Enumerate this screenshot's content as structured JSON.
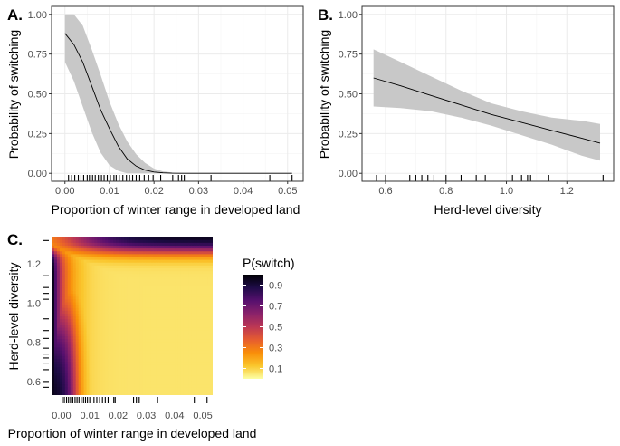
{
  "colors": {
    "ribbon": "#c8c8c8",
    "line": "#000000",
    "panel_border": "#333333",
    "grid_major": "#ebebeb",
    "grid_minor": "#f4f4f4",
    "palette": [
      "#fcffa4",
      "#fac62d",
      "#f98e09",
      "#e65d2f",
      "#bc3754",
      "#8a226a",
      "#57106e",
      "#1f0c48",
      "#000004"
    ]
  },
  "chart_data": [
    {
      "type": "line",
      "panel_label": "A.",
      "xlabel": "Proportion of winter range in developed land",
      "ylabel": "Probability of switching",
      "xlim": [
        -0.003,
        0.0535
      ],
      "ylim": [
        -0.05,
        1.05
      ],
      "x_ticks": [
        "0.00",
        "0.01",
        "0.02",
        "0.03",
        "0.04",
        "0.05"
      ],
      "x_tick_values": [
        0,
        0.01,
        0.02,
        0.03,
        0.04,
        0.05
      ],
      "y_ticks": [
        "0.00",
        "0.25",
        "0.50",
        "0.75",
        "1.00"
      ],
      "y_tick_values": [
        0,
        0.25,
        0.5,
        0.75,
        1.0
      ],
      "grid": true,
      "x": [
        0.0,
        0.002,
        0.004,
        0.006,
        0.008,
        0.01,
        0.012,
        0.014,
        0.016,
        0.018,
        0.02,
        0.022,
        0.024,
        0.026,
        0.03,
        0.035,
        0.04,
        0.045,
        0.051
      ],
      "y": [
        0.88,
        0.81,
        0.7,
        0.55,
        0.4,
        0.28,
        0.17,
        0.09,
        0.045,
        0.02,
        0.008,
        0.003,
        0.001,
        0.0,
        0.0,
        0.0,
        0.0,
        0.0,
        0.0
      ],
      "y_lower": [
        0.7,
        0.58,
        0.42,
        0.26,
        0.13,
        0.05,
        0.015,
        0.0,
        0.0,
        0.0,
        0.0,
        0.0,
        0.0,
        0.0,
        0.0,
        0.0,
        0.0,
        0.0,
        0.0
      ],
      "y_upper": [
        1.0,
        1.0,
        0.93,
        0.78,
        0.62,
        0.45,
        0.31,
        0.2,
        0.12,
        0.065,
        0.03,
        0.012,
        0.005,
        0.002,
        0.0,
        0.0,
        0.0,
        0.0,
        0.0
      ],
      "rug_x": [
        0.0008,
        0.0015,
        0.0022,
        0.003,
        0.0036,
        0.0042,
        0.005,
        0.0055,
        0.0062,
        0.0068,
        0.0075,
        0.0082,
        0.0088,
        0.0095,
        0.0102,
        0.011,
        0.0115,
        0.0122,
        0.013,
        0.0138,
        0.0145,
        0.0152,
        0.016,
        0.0168,
        0.0178,
        0.0188,
        0.0198,
        0.0215,
        0.0242,
        0.0255,
        0.0262,
        0.0268,
        0.0328,
        0.046,
        0.051
      ]
    },
    {
      "type": "line",
      "panel_label": "B.",
      "xlabel": "Herd-level diversity",
      "ylabel": "Probability of switching",
      "xlim": [
        0.522,
        1.355
      ],
      "ylim": [
        -0.05,
        1.05
      ],
      "x_ticks": [
        "0.6",
        "0.8",
        "1.0",
        "1.2"
      ],
      "x_tick_values": [
        0.6,
        0.8,
        1.0,
        1.2
      ],
      "y_ticks": [
        "0.00",
        "0.25",
        "0.50",
        "0.75",
        "1.00"
      ],
      "y_tick_values": [
        0,
        0.25,
        0.5,
        0.75,
        1.0
      ],
      "grid": true,
      "x": [
        0.56,
        0.65,
        0.75,
        0.85,
        0.95,
        1.05,
        1.15,
        1.25,
        1.31
      ],
      "y": [
        0.6,
        0.55,
        0.49,
        0.43,
        0.37,
        0.32,
        0.27,
        0.22,
        0.19
      ],
      "y_lower": [
        0.42,
        0.41,
        0.39,
        0.35,
        0.3,
        0.24,
        0.18,
        0.11,
        0.08
      ],
      "y_upper": [
        0.78,
        0.7,
        0.61,
        0.52,
        0.44,
        0.39,
        0.35,
        0.33,
        0.31
      ],
      "rug_x": [
        0.57,
        0.6,
        0.68,
        0.7,
        0.72,
        0.74,
        0.76,
        0.8,
        0.85,
        0.9,
        0.93,
        1.02,
        1.05,
        1.07,
        1.08,
        1.14,
        1.32
      ]
    },
    {
      "type": "heatmap",
      "panel_label": "C.",
      "xlabel": "Proportion of winter range in developed land",
      "ylabel": "Herd-level diversity",
      "legend_title": "P(switch)",
      "legend_position": "right",
      "xlim": [
        -0.0035,
        0.0535
      ],
      "ylim": [
        0.53,
        1.34
      ],
      "x_ticks": [
        "0.00",
        "0.01",
        "0.02",
        "0.03",
        "0.04",
        "0.05"
      ],
      "x_tick_values": [
        0,
        0.01,
        0.02,
        0.03,
        0.04,
        0.05
      ],
      "y_ticks": [
        "0.6",
        "0.8",
        "1.0",
        "1.2"
      ],
      "y_tick_values": [
        0.6,
        0.8,
        1.0,
        1.2
      ],
      "legend_ticks": [
        "0.9",
        "0.7",
        "0.5",
        "0.3",
        "0.1"
      ],
      "legend_tick_values": [
        0.9,
        0.7,
        0.5,
        0.3,
        0.1
      ],
      "legend_range": [
        0.0,
        1.0
      ],
      "z_description": "Highest near x=0 at low diversity and near x=0.05 at high diversity; low over the central region",
      "rug_x": [
        0.0003,
        0.001,
        0.0018,
        0.0025,
        0.0032,
        0.004,
        0.0048,
        0.0055,
        0.0062,
        0.007,
        0.0078,
        0.0085,
        0.0092,
        0.01,
        0.0115,
        0.0125,
        0.0135,
        0.0145,
        0.0155,
        0.0165,
        0.0185,
        0.019,
        0.0255,
        0.0265,
        0.0275,
        0.034,
        0.047,
        0.0515
      ],
      "rug_y": [
        0.57,
        0.6,
        0.66,
        0.69,
        0.72,
        0.74,
        0.77,
        0.82,
        0.86,
        0.92,
        1.02,
        1.05,
        1.08,
        1.14,
        1.32
      ]
    }
  ]
}
